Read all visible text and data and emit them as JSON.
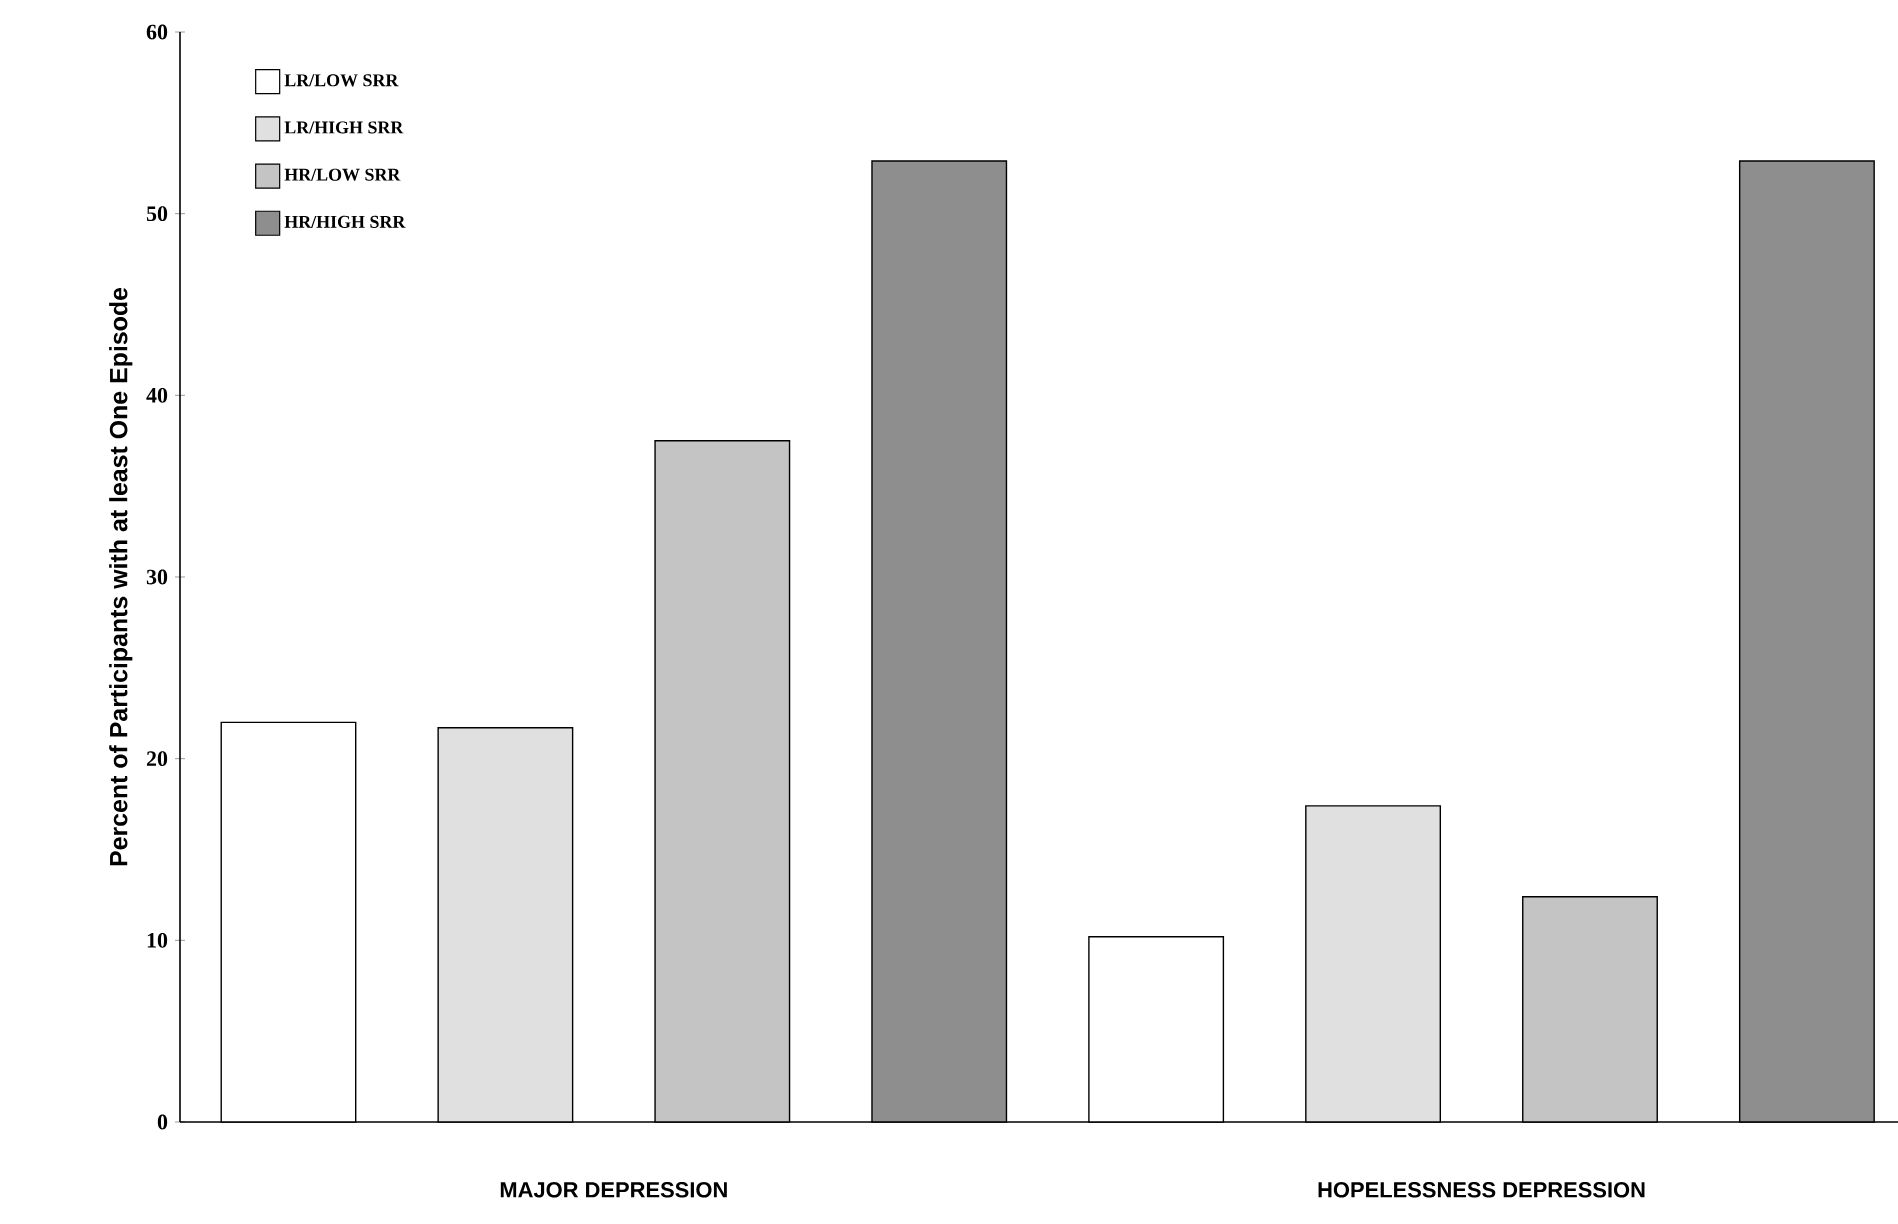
{
  "chart_data": {
    "type": "bar",
    "ylabel": "Percent of Participants with at least One Episode",
    "categories": [
      "MAJOR DEPRESSION",
      "HOPELESSNESS   DEPRESSION"
    ],
    "series": [
      {
        "name": "LR/LOW SRR",
        "color": "#ffffff",
        "values": [
          22,
          10.2
        ]
      },
      {
        "name": "LR/HIGH SRR",
        "color": "#e0e0e0",
        "values": [
          21.7,
          17.4
        ]
      },
      {
        "name": "HR/LOW SRR",
        "color": "#c4c4c4",
        "values": [
          37.5,
          12.4
        ]
      },
      {
        "name": "HR/HIGH SRR",
        "color": "#8e8e8e",
        "values": [
          52.9,
          52.9
        ]
      }
    ],
    "ylim": [
      0,
      60
    ],
    "yticks": [
      0,
      10,
      20,
      30,
      40,
      50,
      60
    ],
    "legend": "top left",
    "grid": false
  }
}
